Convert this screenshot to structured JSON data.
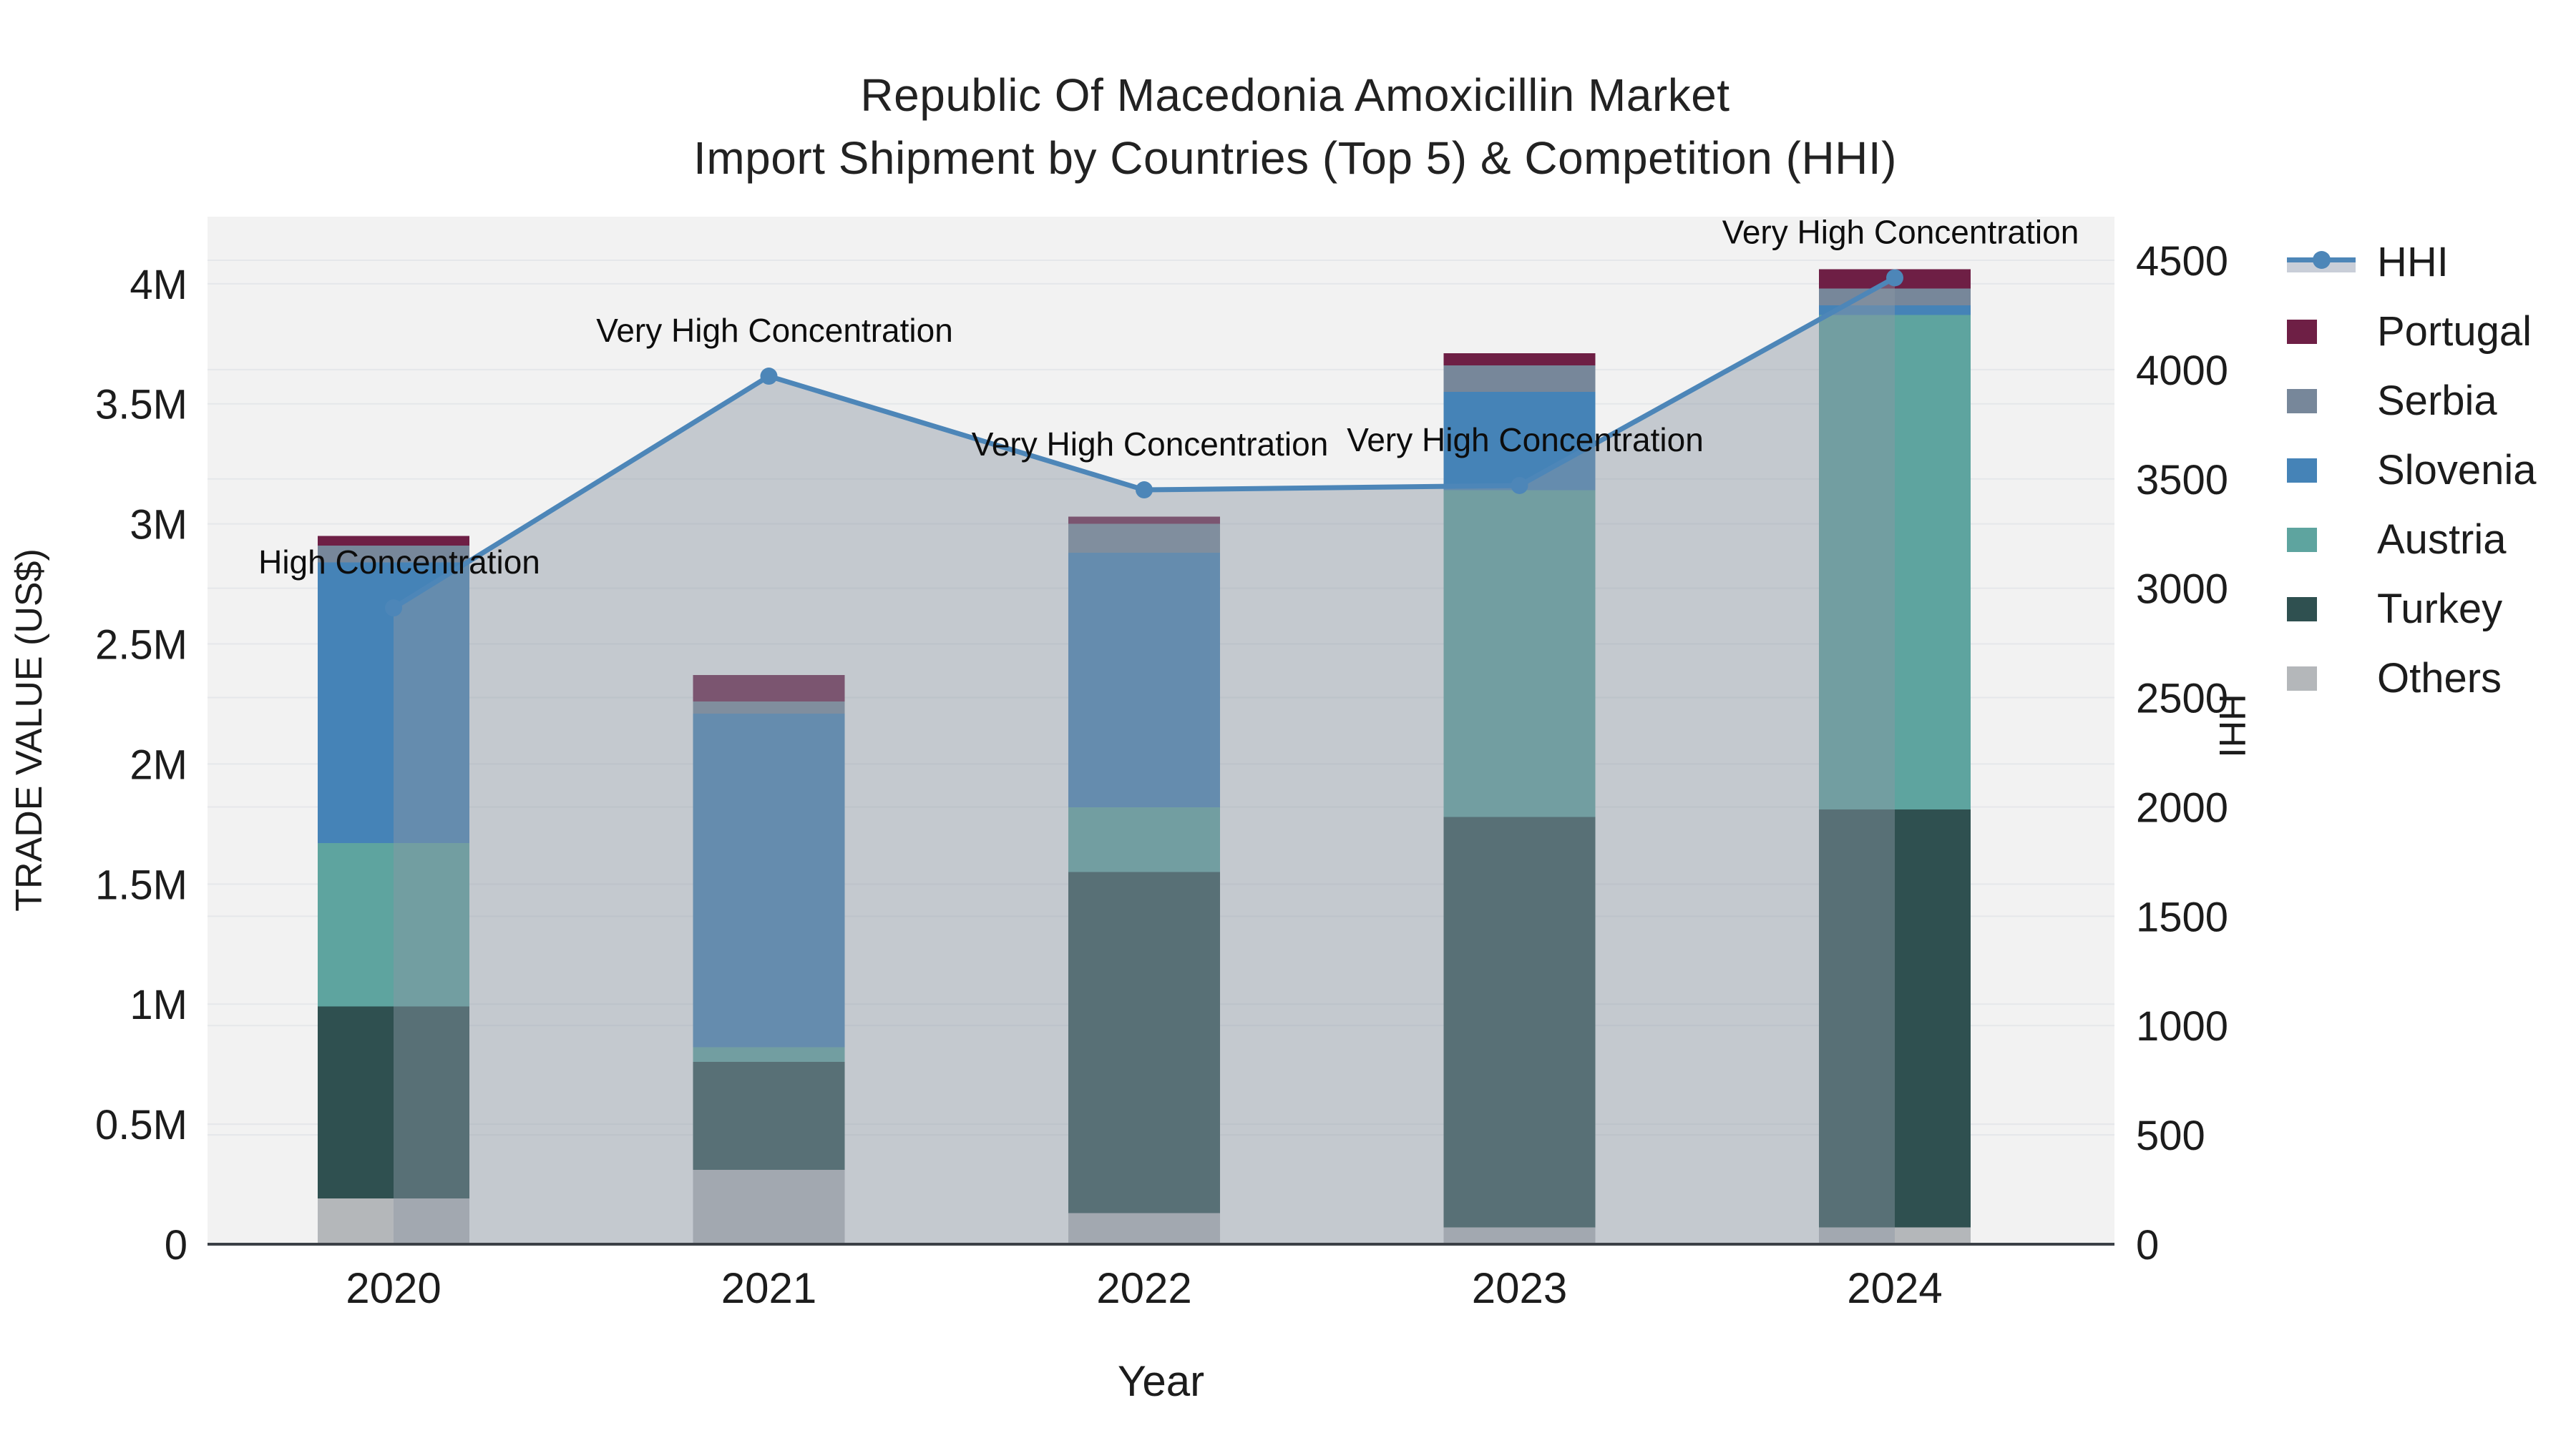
{
  "title": {
    "line1": "Republic Of Macedonia Amoxicillin Market",
    "line2": "Import Shipment by Countries (Top 5) & Competition (HHI)"
  },
  "axes": {
    "x": {
      "title": "Year",
      "tick_labels": [
        "2020",
        "2021",
        "2022",
        "2023",
        "2024"
      ]
    },
    "y_left": {
      "title": "TRADE VALUE (US$)",
      "tick_labels": [
        "0",
        "0.5M",
        "1M",
        "1.5M",
        "2M",
        "2.5M",
        "3M",
        "3.5M",
        "4M"
      ],
      "tick_values": [
        0,
        0.5,
        1,
        1.5,
        2,
        2.5,
        3,
        3.5,
        4
      ],
      "range": [
        0,
        4.28
      ]
    },
    "y_right": {
      "title": "HHI",
      "tick_labels": [
        "0",
        "500",
        "1000",
        "1500",
        "2000",
        "2500",
        "3000",
        "3500",
        "4000",
        "4500"
      ],
      "tick_values": [
        0,
        500,
        1000,
        1500,
        2000,
        2500,
        3000,
        3500,
        4000,
        4500
      ],
      "range": [
        0,
        4700
      ]
    }
  },
  "legend": {
    "items": [
      {
        "label": "HHI",
        "type": "line",
        "color": "#4d86b8",
        "band_color": "#c9ced8"
      },
      {
        "label": "Portugal",
        "type": "swatch",
        "color": "#6e1f45"
      },
      {
        "label": "Serbia",
        "type": "swatch",
        "color": "#77879a"
      },
      {
        "label": "Slovenia",
        "type": "swatch",
        "color": "#4583b7"
      },
      {
        "label": "Austria",
        "type": "swatch",
        "color": "#5ea49f"
      },
      {
        "label": "Turkey",
        "type": "swatch",
        "color": "#2f5050"
      },
      {
        "label": "Others",
        "type": "swatch",
        "color": "#b4b7ba"
      }
    ]
  },
  "chart_data": {
    "type": "combo",
    "subtypes": [
      "stacked-bar",
      "line-area"
    ],
    "categories": [
      "2020",
      "2021",
      "2022",
      "2023",
      "2024"
    ],
    "bar_value_unit": "million US$",
    "bar_series_bottom_to_top": [
      {
        "name": "Others",
        "color": "#b4b7ba",
        "values": [
          0.19,
          0.31,
          0.13,
          0.07,
          0.07
        ]
      },
      {
        "name": "Turkey",
        "color": "#2f5050",
        "values": [
          0.8,
          0.45,
          1.42,
          1.71,
          1.74
        ]
      },
      {
        "name": "Austria",
        "color": "#5ea49f",
        "values": [
          0.68,
          0.06,
          0.27,
          1.36,
          2.06
        ]
      },
      {
        "name": "Slovenia",
        "color": "#4583b7",
        "values": [
          1.17,
          1.39,
          1.06,
          0.41,
          0.04
        ]
      },
      {
        "name": "Serbia",
        "color": "#77879a",
        "values": [
          0.07,
          0.05,
          0.12,
          0.11,
          0.07
        ]
      },
      {
        "name": "Portugal",
        "color": "#6e1f45",
        "values": [
          0.04,
          0.11,
          0.03,
          0.05,
          0.08
        ]
      }
    ],
    "bar_totals": [
      2.95,
      2.37,
      3.03,
      3.71,
      4.06
    ],
    "line_series": {
      "name": "HHI",
      "color": "#4d86b8",
      "area_fill": "rgba(140,150,165,0.45)",
      "values": [
        2910,
        3970,
        3450,
        3470,
        4420
      ]
    },
    "annotations": [
      {
        "category": "2020",
        "text": "High Concentration"
      },
      {
        "category": "2021",
        "text": "Very High Concentration"
      },
      {
        "category": "2022",
        "text": "Very High Concentration"
      },
      {
        "category": "2023",
        "text": "Very High Concentration"
      },
      {
        "category": "2024",
        "text": "Very High Concentration"
      }
    ],
    "layout_hints": {
      "plot_background": "#f2f2f2",
      "grid_color": "#e5e7ea",
      "axis_line_color": "#3b4046",
      "grid_on": true,
      "legend_position": "right"
    }
  }
}
